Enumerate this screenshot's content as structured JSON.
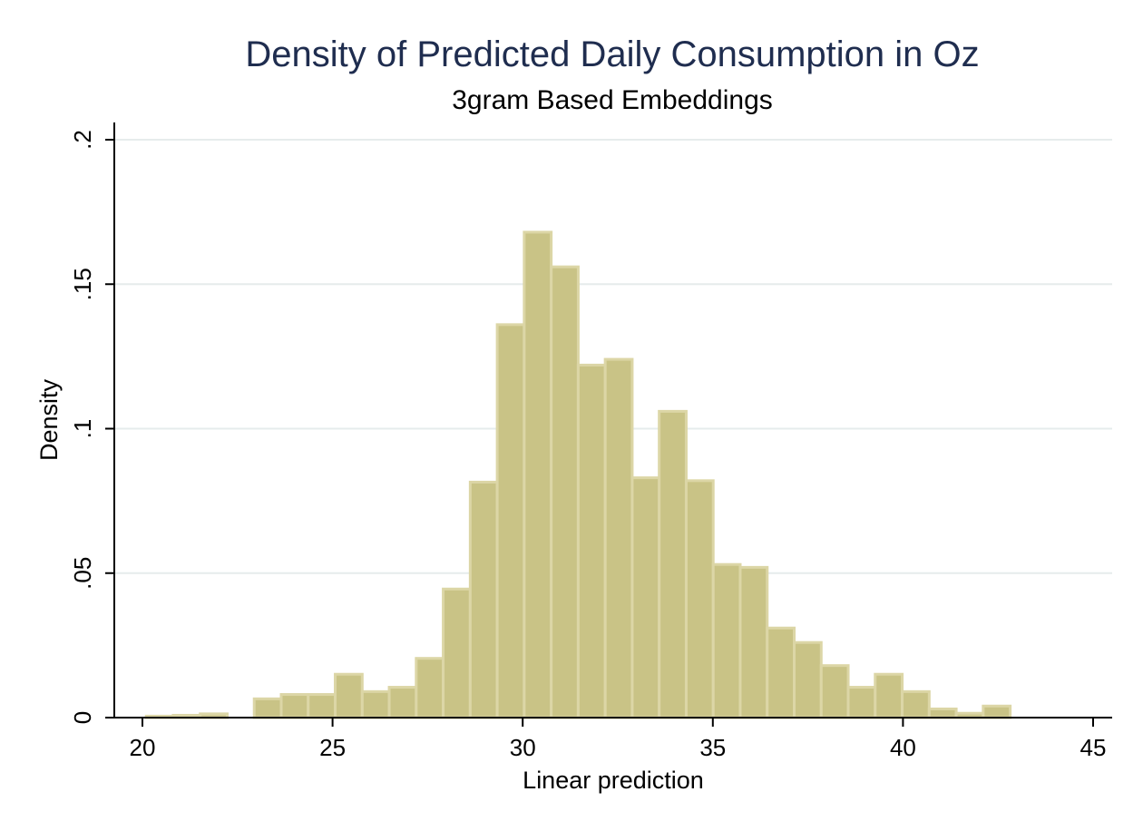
{
  "chart_data": {
    "type": "bar",
    "title": "Density of Predicted Daily Consumption in Oz",
    "subtitle": "3gram Based Embeddings",
    "xlabel": "Linear prediction",
    "ylabel": "Density",
    "xlim": [
      19.9,
      45.5
    ],
    "ylim": [
      0,
      0.2
    ],
    "x_ticks": [
      20,
      25,
      30,
      35,
      40,
      45
    ],
    "x_tick_labels": [
      "20",
      "25",
      "30",
      "35",
      "40",
      "45"
    ],
    "y_ticks": [
      0,
      0.05,
      0.1,
      0.15,
      0.2
    ],
    "y_tick_labels": [
      "0",
      ".05",
      ".1",
      ".15",
      ".2"
    ],
    "grid": "horizontal",
    "bin_width": 0.71,
    "bins": [
      {
        "x0": 20.1,
        "value": 0.0005
      },
      {
        "x0": 20.81,
        "value": 0.0008
      },
      {
        "x0": 21.52,
        "value": 0.0013
      },
      {
        "x0": 22.23,
        "value": 0.0
      },
      {
        "x0": 22.94,
        "value": 0.0065
      },
      {
        "x0": 23.65,
        "value": 0.008
      },
      {
        "x0": 24.36,
        "value": 0.008
      },
      {
        "x0": 25.07,
        "value": 0.015
      },
      {
        "x0": 25.78,
        "value": 0.009
      },
      {
        "x0": 26.49,
        "value": 0.0105
      },
      {
        "x0": 27.2,
        "value": 0.0205
      },
      {
        "x0": 27.91,
        "value": 0.0445
      },
      {
        "x0": 28.62,
        "value": 0.0815
      },
      {
        "x0": 29.33,
        "value": 0.136
      },
      {
        "x0": 30.04,
        "value": 0.168
      },
      {
        "x0": 30.75,
        "value": 0.156
      },
      {
        "x0": 31.46,
        "value": 0.122
      },
      {
        "x0": 32.17,
        "value": 0.124
      },
      {
        "x0": 32.88,
        "value": 0.083
      },
      {
        "x0": 33.59,
        "value": 0.106
      },
      {
        "x0": 34.3,
        "value": 0.082
      },
      {
        "x0": 35.01,
        "value": 0.053
      },
      {
        "x0": 35.72,
        "value": 0.052
      },
      {
        "x0": 36.43,
        "value": 0.031
      },
      {
        "x0": 37.14,
        "value": 0.026
      },
      {
        "x0": 37.85,
        "value": 0.018
      },
      {
        "x0": 38.56,
        "value": 0.0105
      },
      {
        "x0": 39.27,
        "value": 0.015
      },
      {
        "x0": 39.98,
        "value": 0.009
      },
      {
        "x0": 40.69,
        "value": 0.003
      },
      {
        "x0": 41.4,
        "value": 0.0015
      },
      {
        "x0": 42.11,
        "value": 0.004
      }
    ],
    "colors": {
      "bar_fill": "#c9c386",
      "bar_edge": "#dcd6a6",
      "grid": "#e6ecec",
      "axis": "#000000",
      "title": "#1f2d4f"
    }
  }
}
